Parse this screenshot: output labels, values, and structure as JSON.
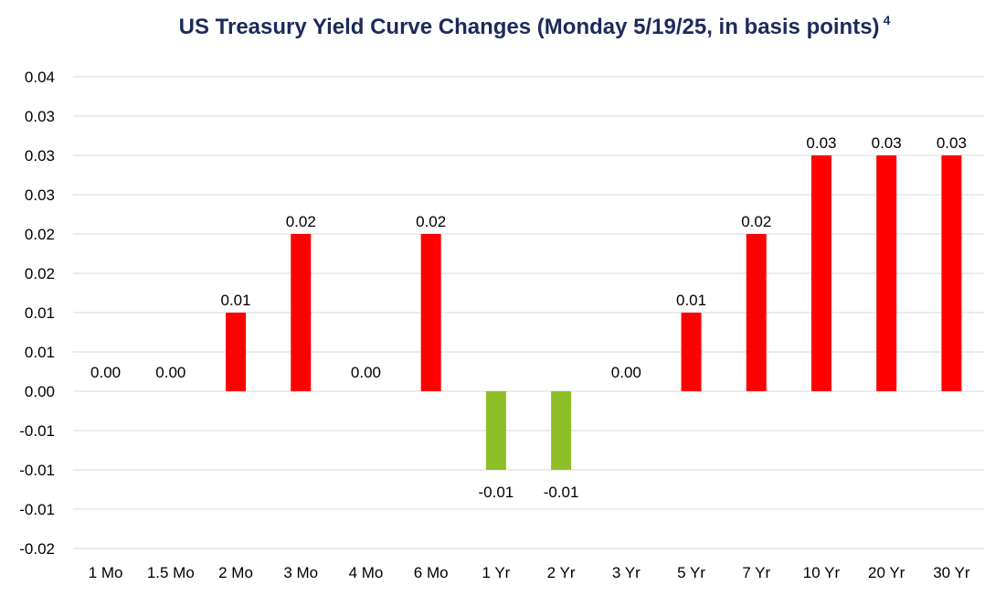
{
  "chart_data": {
    "type": "bar",
    "title": "US Treasury Yield Curve Changes (Monday 5/19/25, in basis points)",
    "title_footnote": "4",
    "xlabel": "",
    "ylabel": "",
    "categories": [
      "1 Mo",
      "1.5 Mo",
      "2 Mo",
      "3 Mo",
      "4 Mo",
      "6 Mo",
      "1 Yr",
      "2 Yr",
      "3 Yr",
      "5 Yr",
      "7 Yr",
      "10 Yr",
      "20 Yr",
      "30 Yr"
    ],
    "values": [
      0.0,
      0.0,
      0.01,
      0.02,
      0.0,
      0.02,
      -0.01,
      -0.01,
      0.0,
      0.01,
      0.02,
      0.03,
      0.03,
      0.03
    ],
    "data_labels": [
      "0.00",
      "0.00",
      "0.01",
      "0.02",
      "0.00",
      "0.02",
      "-0.01",
      "-0.01",
      "0.00",
      "0.01",
      "0.02",
      "0.03",
      "0.03",
      "0.03"
    ],
    "y_ticks": [
      -0.02,
      -0.015,
      -0.01,
      -0.005,
      0,
      0.005,
      0.01,
      0.015,
      0.02,
      0.025,
      0.03,
      0.035,
      0.04
    ],
    "y_tick_labels": [
      "-0.02",
      "-0.01",
      "-0.01",
      "-0.01",
      "0.00",
      "0.01",
      "0.01",
      "0.02",
      "0.02",
      "0.03",
      "0.03",
      "0.03",
      "0.04"
    ],
    "ylim": [
      -0.02,
      0.04
    ],
    "grid": true,
    "legend": "none",
    "colors": {
      "positive": "#ff0000",
      "negative": "#8cbf26",
      "title": "#1c2a5c",
      "grid": "#d9d9d9",
      "text": "#000000"
    }
  }
}
